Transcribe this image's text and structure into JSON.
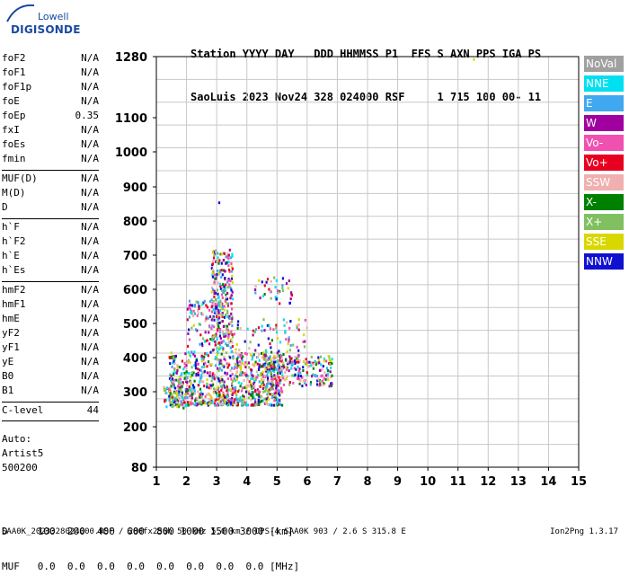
{
  "logo": {
    "line1": "Lowell",
    "line2": "DIGISONDE"
  },
  "header": {
    "line1": "Station YYYY DAY   DDD HHMMSS P1  FFS S AXN PPS IGA PS",
    "line2": "SaoLuis 2023 Nov24 328 024000 RSF     1 715 100 00- 11"
  },
  "params": {
    "group1": [
      {
        "name": "foF2",
        "value": "N/A"
      },
      {
        "name": "foF1",
        "value": "N/A"
      },
      {
        "name": "foF1p",
        "value": "N/A"
      },
      {
        "name": "foE",
        "value": "N/A"
      },
      {
        "name": "foEp",
        "value": "0.35"
      },
      {
        "name": "fxI",
        "value": "N/A"
      },
      {
        "name": "foEs",
        "value": "N/A"
      },
      {
        "name": "fmin",
        "value": "N/A"
      }
    ],
    "group2": [
      {
        "name": "MUF(D)",
        "value": "N/A"
      },
      {
        "name": "M(D)",
        "value": "N/A"
      },
      {
        "name": "D",
        "value": "N/A"
      }
    ],
    "group3": [
      {
        "name": "h`F",
        "value": "N/A"
      },
      {
        "name": "h`F2",
        "value": "N/A"
      },
      {
        "name": "h`E",
        "value": "N/A"
      },
      {
        "name": "h`Es",
        "value": "N/A"
      }
    ],
    "group4": [
      {
        "name": "hmF2",
        "value": "N/A"
      },
      {
        "name": "hmF1",
        "value": "N/A"
      },
      {
        "name": "hmE",
        "value": "N/A"
      },
      {
        "name": "yF2",
        "value": "N/A"
      },
      {
        "name": "yF1",
        "value": "N/A"
      },
      {
        "name": "yE",
        "value": "N/A"
      },
      {
        "name": "B0",
        "value": "N/A"
      },
      {
        "name": "B1",
        "value": "N/A"
      }
    ],
    "group5": [
      {
        "name": "C-level",
        "value": "44"
      }
    ]
  },
  "auto": {
    "line1": "Auto:",
    "line2": "Artist5",
    "line3": "500200"
  },
  "legend": [
    {
      "label": "NoVal",
      "color": "#a0a0a0"
    },
    {
      "label": "NNE",
      "color": "#00e0f0"
    },
    {
      "label": "E",
      "color": "#40a8f0"
    },
    {
      "label": "W",
      "color": "#a000a0"
    },
    {
      "label": "Vo-",
      "color": "#f050b0"
    },
    {
      "label": "Vo+",
      "color": "#e80020"
    },
    {
      "label": "SSW",
      "color": "#f0b0b0"
    },
    {
      "label": "X-",
      "color": "#008000"
    },
    {
      "label": "X+",
      "color": "#80c060"
    },
    {
      "label": "SSE",
      "color": "#d8d800"
    },
    {
      "label": "NNW",
      "color": "#1010d0"
    }
  ],
  "bottom": {
    "d_row": "D     100  200  400  600  800 1000 1500 3000 [km]",
    "muf_row": "MUF   0.0  0.0  0.0  0.0  0.0  0.0  0.0  0.0 [MHz]"
  },
  "footer": {
    "left": "SAA0K_2023328024000.RSF / 280fx256h 50 kHz 5.0 km / DPS-4 SAA0K 903 / 2.6 S 315.8 E",
    "right": "Ion2Png 1.3.17"
  },
  "chart_data": {
    "type": "scatter",
    "xlim": [
      1,
      15
    ],
    "ylim": [
      80,
      1280
    ],
    "x_ticks": [
      1,
      2,
      3,
      4,
      5,
      6,
      7,
      8,
      9,
      10,
      11,
      12,
      13,
      14,
      15
    ],
    "y_ticks": [
      80,
      200,
      300,
      400,
      500,
      600,
      700,
      800,
      900,
      1000,
      1100,
      1280
    ],
    "grid": true,
    "clusters": [
      {
        "name": "F trace main",
        "x_range": [
          1.4,
          5.2
        ],
        "y_range": [
          265,
          420
        ],
        "n": 900
      },
      {
        "name": "F trace extension",
        "x_range": [
          4.5,
          6.8
        ],
        "y_range": [
          320,
          410
        ],
        "n": 220
      },
      {
        "name": "low-frequency edge",
        "x_range": [
          1.2,
          2.0
        ],
        "y_range": [
          255,
          320
        ],
        "n": 60
      },
      {
        "name": "spread near 3 MHz",
        "x_range": [
          2.8,
          3.5
        ],
        "y_range": [
          420,
          720
        ],
        "n": 260
      },
      {
        "name": "blob 550 km",
        "x_range": [
          2.0,
          3.2
        ],
        "y_range": [
          520,
          570
        ],
        "n": 60
      },
      {
        "name": "blob 580 km",
        "x_range": [
          4.2,
          5.5
        ],
        "y_range": [
          560,
          640
        ],
        "n": 40
      },
      {
        "name": "scatter 400-500 km",
        "x_range": [
          2.0,
          6.0
        ],
        "y_range": [
          420,
          520
        ],
        "n": 120
      },
      {
        "name": "isolated",
        "x_range": [
          3.05,
          3.1
        ],
        "y_range": [
          855,
          865
        ],
        "n": 1
      },
      {
        "name": "isolated top",
        "x_range": [
          11.45,
          11.5
        ],
        "y_range": [
          1274,
          1280
        ],
        "n": 1
      }
    ],
    "colors": [
      "#1010d0",
      "#a000a0",
      "#f050b0",
      "#e80020",
      "#d8d800",
      "#40a8f0",
      "#00e0f0",
      "#008000",
      "#80c060",
      "#f0b0b0"
    ]
  }
}
